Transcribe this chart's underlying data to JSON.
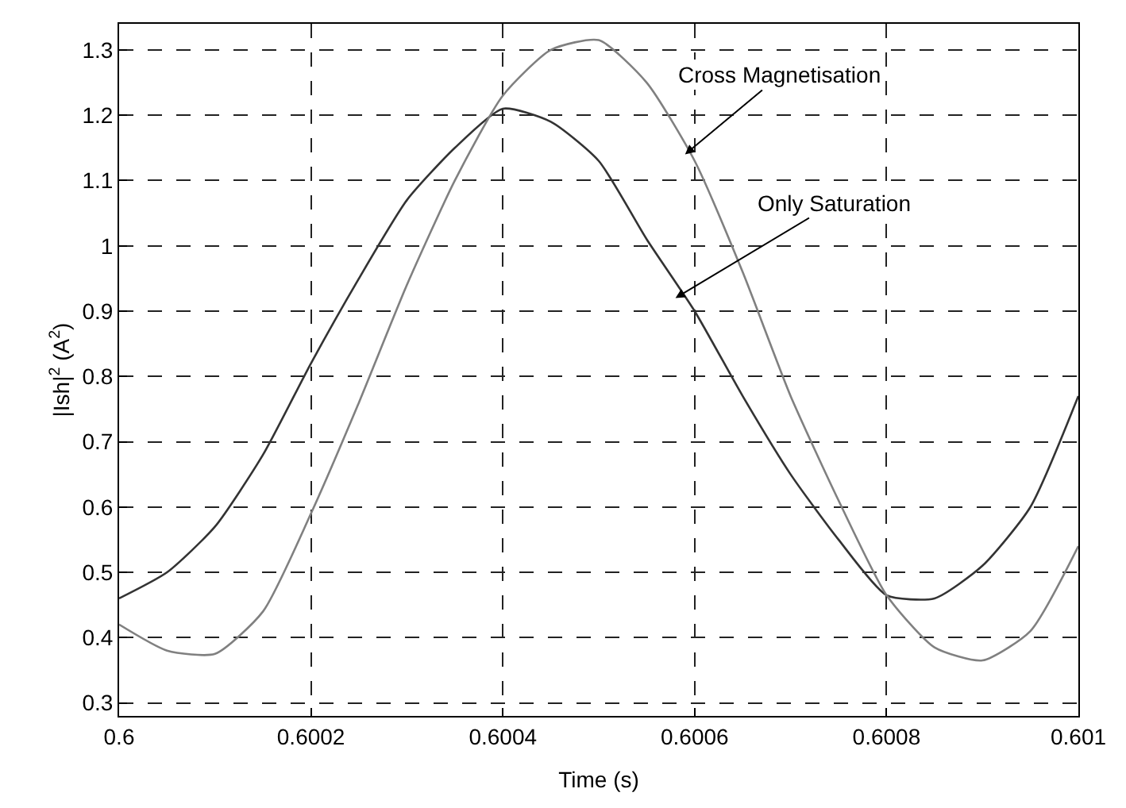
{
  "chart_data": {
    "type": "line",
    "xlabel": "Time (s)",
    "ylabel": "|Ish|$^{2}$ (A$^{2}$)",
    "x": [
      0.6,
      0.60005,
      0.6001,
      0.60015,
      0.6002,
      0.60025,
      0.6003,
      0.60035,
      0.6004,
      0.60045,
      0.6005,
      0.60055,
      0.6006,
      0.60065,
      0.6007,
      0.60075,
      0.6008,
      0.60085,
      0.6009,
      0.60095,
      0.601
    ],
    "series": [
      {
        "color": "#333333",
        "values": [
          0.46,
          0.5,
          0.57,
          0.68,
          0.82,
          0.95,
          1.07,
          1.15,
          1.21,
          1.19,
          1.13,
          1.01,
          0.9,
          0.77,
          0.65,
          0.55,
          0.465,
          0.46,
          0.51,
          0.6,
          0.77
        ]
      },
      {
        "color": "#808080",
        "values": [
          0.42,
          0.38,
          0.375,
          0.44,
          0.59,
          0.76,
          0.94,
          1.1,
          1.23,
          1.3,
          1.315,
          1.25,
          1.13,
          0.96,
          0.77,
          0.61,
          0.465,
          0.385,
          0.365,
          0.41,
          0.54
        ]
      }
    ],
    "annotations": [
      {
        "text": "Cross Magnetisation",
        "x": 0.60059,
        "y": 1.14
      },
      {
        "text": "Only Saturation",
        "x": 0.60058,
        "y": 0.92
      }
    ],
    "xlim": [
      0.6,
      0.601
    ],
    "xticks": [
      0.6,
      0.6002,
      0.6004,
      0.6006,
      0.6008,
      0.601
    ],
    "ylim": [
      0.28,
      1.34
    ],
    "yticks": [
      0.3,
      0.4,
      0.5,
      0.6,
      0.7,
      0.8,
      0.9,
      1,
      1.1,
      1.2,
      1.3
    ],
    "grid": true,
    "line_style": "solid",
    "marker": "none"
  }
}
